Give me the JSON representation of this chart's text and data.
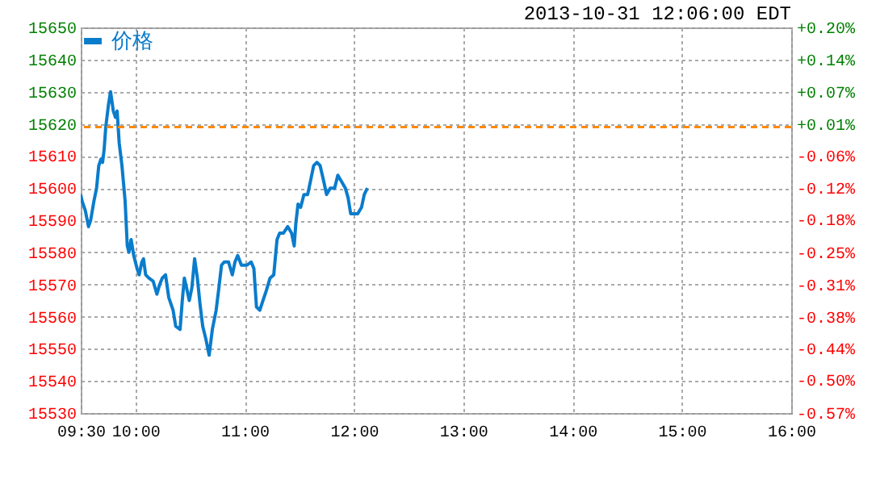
{
  "chart_data": {
    "type": "line",
    "annotations": [
      "2013-10-31 12:06:00 EDT"
    ],
    "xlim": [
      9.5,
      16
    ],
    "xticks": [
      {
        "value": 9.5,
        "label": "09:30"
      },
      {
        "value": 10,
        "label": "10:00"
      },
      {
        "value": 11,
        "label": "11:00"
      },
      {
        "value": 12,
        "label": "12:00"
      },
      {
        "value": 13,
        "label": "13:00"
      },
      {
        "value": 14,
        "label": "14:00"
      },
      {
        "value": 15,
        "label": "15:00"
      },
      {
        "value": 16,
        "label": "16:00"
      }
    ],
    "ylim": [
      15530,
      15650
    ],
    "yticks": [
      15530,
      15540,
      15550,
      15560,
      15570,
      15580,
      15590,
      15600,
      15610,
      15620,
      15630,
      15640,
      15650
    ],
    "y2lim": [
      -0.57,
      0.2
    ],
    "y2ticks": [
      {
        "value": -0.57,
        "label": "-0.57%"
      },
      {
        "value": -0.504,
        "label": "-0.50%"
      },
      {
        "value": -0.4417,
        "label": "-0.44%"
      },
      {
        "value": -0.3775,
        "label": "-0.38%"
      },
      {
        "value": -0.3133,
        "label": "-0.31%"
      },
      {
        "value": -0.2492,
        "label": "-0.25%"
      },
      {
        "value": -0.184,
        "label": "-0.18%"
      },
      {
        "value": -0.1208,
        "label": "-0.12%"
      },
      {
        "value": -0.0567,
        "label": "-0.06%"
      },
      {
        "value": 0.0075,
        "label": "+0.01%"
      },
      {
        "value": 0.0717,
        "label": "+0.07%"
      },
      {
        "value": 0.1358,
        "label": "+0.14%"
      },
      {
        "value": 0.2,
        "label": "+0.20%"
      }
    ],
    "grid": true,
    "legend": "top",
    "marker": "none",
    "line_style": "solid",
    "ref_lines": [
      {
        "axis": "y",
        "value": 15619,
        "color": "#ff8800",
        "line_style": "dashed"
      }
    ],
    "series": [
      {
        "name": "价格",
        "color": "#0a7ccc",
        "x": [
          9.5,
          9.512,
          9.542,
          9.571,
          9.591,
          9.621,
          9.645,
          9.665,
          9.685,
          9.7,
          9.714,
          9.729,
          9.754,
          9.773,
          9.798,
          9.818,
          9.833,
          9.852,
          9.877,
          9.906,
          9.926,
          9.941,
          9.961,
          9.985,
          10.015,
          10.034,
          10.059,
          10.074,
          10.094,
          10.123,
          10.163,
          10.197,
          10.222,
          10.246,
          10.276,
          10.305,
          10.345,
          10.369,
          10.409,
          10.429,
          10.448,
          10.468,
          10.493,
          10.517,
          10.542,
          10.567,
          10.591,
          10.616,
          10.645,
          10.675,
          10.704,
          10.739,
          10.764,
          10.788,
          10.813,
          10.852,
          10.887,
          10.911,
          10.936,
          10.97,
          11.02,
          11.059,
          11.084,
          11.108,
          11.138,
          11.167,
          11.197,
          11.232,
          11.266,
          11.296,
          11.32,
          11.355,
          11.394,
          11.429,
          11.453,
          11.468,
          11.488,
          11.512,
          11.542,
          11.576,
          11.601,
          11.631,
          11.66,
          11.69,
          11.724,
          11.749,
          11.783,
          11.823,
          11.852,
          11.887,
          11.921,
          11.946,
          11.97,
          11.995,
          12.034,
          12.069,
          12.094,
          12.123
        ],
        "values": [
          15598,
          15596,
          15593,
          15588,
          15590,
          15596,
          15600,
          15607,
          15609,
          15608,
          15612,
          15619,
          15626,
          15630,
          15624,
          15622,
          15624,
          15614,
          15607,
          15596,
          15582,
          15580,
          15584,
          15579,
          15575,
          15573,
          15577,
          15578,
          15573,
          15572,
          15571,
          15567,
          15570,
          15572,
          15573,
          15566,
          15562,
          15557,
          15556,
          15565,
          15572,
          15569,
          15565,
          15569,
          15578,
          15572,
          15564,
          15557,
          15553,
          15548,
          15556,
          15562,
          15569,
          15576,
          15577,
          15577,
          15573,
          15577,
          15579,
          15576,
          15576,
          15577,
          15575,
          15563,
          15562,
          15565,
          15568,
          15572,
          15573,
          15584,
          15586,
          15586,
          15588,
          15586,
          15582,
          15589,
          15595,
          15594,
          15598,
          15598,
          15602,
          15607,
          15608,
          15607,
          15602,
          15598,
          15600,
          15600,
          15604,
          15602,
          15600,
          15597,
          15592,
          15592,
          15592,
          15594,
          15598,
          15600
        ]
      }
    ]
  }
}
